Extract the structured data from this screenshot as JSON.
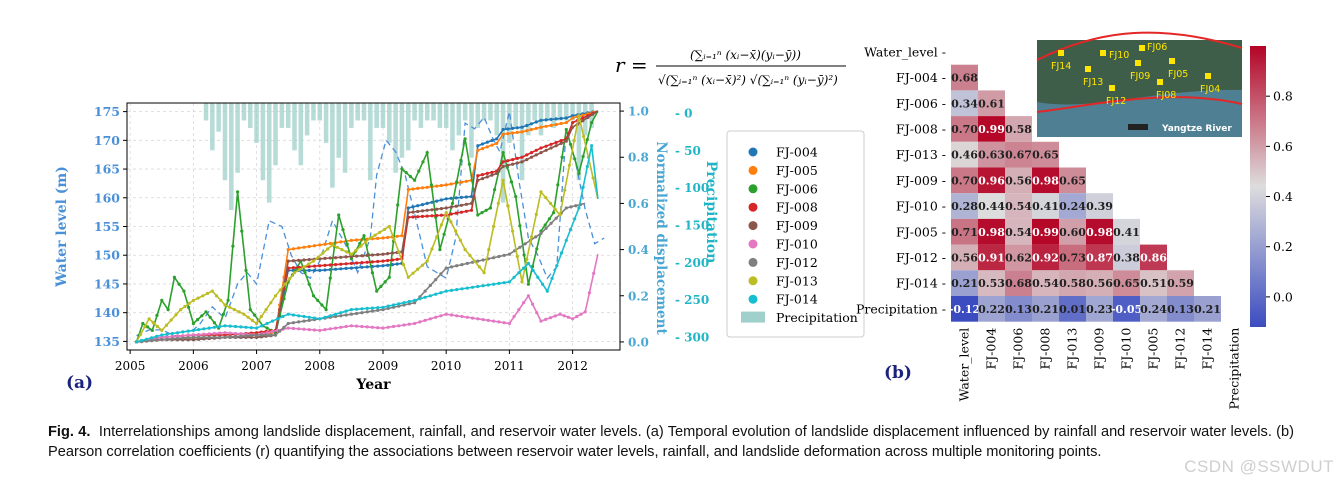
{
  "figure": {
    "panel_a_label": "(a)",
    "panel_b_label": "(b)",
    "formula": {
      "lhs": "r =",
      "numerator": "(∑ᵢ₌₁ⁿ (xᵢ−x̄)(yᵢ−ȳ))",
      "denominator": "√(∑ᵢ₌₁ⁿ (xᵢ−x̄)²) √(∑ᵢ₌₁ⁿ (yᵢ−ȳ)²)"
    },
    "map_inset": {
      "labels": [
        "FJ06",
        "FJ10",
        "FJ14",
        "FJ13",
        "FJ09",
        "FJ05",
        "FJ12",
        "FJ08",
        "FJ04"
      ],
      "river_label": "Yangtze River"
    }
  },
  "caption": {
    "label": "Fig. 4.",
    "text": "Interrelationships among landslide displacement, rainfall, and reservoir water levels. (a) Temporal evolution of landslide displacement influenced by rainfall and reservoir water levels. (b) Pearson correlation coefficients (r) quantifying the associations between reservoir water levels, rainfall, and landslide deformation across multiple monitoring points."
  },
  "watermark": "CSDN @SSWDUT",
  "colors": {
    "water": "#4a90d9",
    "precip": "#9fd0cb",
    "norm": "#4aa6d2",
    "precipAxis": "#1fb5c5",
    "FJ-004": "#1f77b4",
    "FJ-005": "#ff7f0e",
    "FJ-006": "#2ca02c",
    "FJ-008": "#d62728",
    "FJ-009": "#8c564b",
    "FJ-010": "#e377c2",
    "FJ-012": "#7f7f7f",
    "FJ-013": "#bcbd22",
    "FJ-014": "#17becf"
  },
  "chart_data": [
    {
      "type": "line",
      "title": "",
      "xlabel": "Year",
      "ylabel_left": "Water level (m)",
      "ylabel_right1": "Normalized displacement",
      "ylabel_right2": "Precipitation",
      "x_ticks": [
        "2005",
        "2006",
        "2007",
        "2008",
        "2009",
        "2010",
        "2011",
        "2012"
      ],
      "xlim": [
        2004.95,
        2012.75
      ],
      "y_left_ticks": [
        "135",
        "140",
        "145",
        "150",
        "155",
        "160",
        "165",
        "170",
        "175"
      ],
      "ylim_left": [
        133.5,
        176.5
      ],
      "y_right1_ticks": [
        "0.0",
        "0.2",
        "0.4",
        "0.6",
        "0.8",
        "1.0"
      ],
      "ylim_right1": [
        -0.035,
        1.035
      ],
      "y_right2_ticks": [
        "0",
        "50",
        "100",
        "150",
        "200",
        "250",
        "300"
      ],
      "ylim_right2_inverted": [
        0,
        300
      ],
      "legend": [
        "FJ-004",
        "FJ-005",
        "FJ-006",
        "FJ-008",
        "FJ-009",
        "FJ-010",
        "FJ-012",
        "FJ-013",
        "FJ-014",
        "Precipitation"
      ],
      "water_level": {
        "x": [
          2005.1,
          2005.3,
          2005.5,
          2005.7,
          2005.9,
          2006.1,
          2006.3,
          2006.5,
          2006.7,
          2006.85,
          2007.0,
          2007.2,
          2007.4,
          2007.55,
          2007.7,
          2007.85,
          2008.0,
          2008.2,
          2008.4,
          2008.6,
          2008.8,
          2008.9,
          2009.05,
          2009.2,
          2009.35,
          2009.55,
          2009.7,
          2009.85,
          2010.0,
          2010.15,
          2010.3,
          2010.45,
          2010.6,
          2010.75,
          2010.85,
          2011.0,
          2011.15,
          2011.3,
          2011.45,
          2011.6,
          2011.75,
          2011.9,
          2012.05,
          2012.2,
          2012.35,
          2012.5
        ],
        "y": [
          136,
          137,
          137,
          136,
          136,
          138,
          141,
          139,
          145,
          147,
          145,
          156,
          155,
          150,
          147,
          146,
          149,
          156,
          152,
          147,
          153,
          164,
          170,
          168,
          164,
          155,
          148,
          147,
          146,
          153,
          173,
          172,
          174,
          170,
          168,
          175,
          163,
          153,
          150,
          146,
          148,
          172,
          166,
          158,
          152,
          153
        ]
      },
      "precipitation": {
        "x": [
          2005.1,
          2005.2,
          2005.3,
          2005.4,
          2005.5,
          2005.6,
          2005.7,
          2005.8,
          2005.9,
          2006.0,
          2006.1,
          2006.2,
          2006.3,
          2006.4,
          2006.5,
          2006.6,
          2006.7,
          2006.8,
          2006.9,
          2007.0,
          2007.1,
          2007.2,
          2007.3,
          2007.4,
          2007.5,
          2007.6,
          2007.7,
          2007.8,
          2007.9,
          2008.0,
          2008.1,
          2008.2,
          2008.3,
          2008.4,
          2008.5,
          2008.6,
          2008.7,
          2008.8,
          2008.9,
          2009.0,
          2009.1,
          2009.2,
          2009.3,
          2009.4,
          2009.5,
          2009.6,
          2009.7,
          2009.8,
          2009.9,
          2010.0,
          2010.1,
          2010.2,
          2010.3,
          2010.4,
          2010.5,
          2010.6,
          2010.7,
          2010.8,
          2010.9,
          2011.0,
          2011.1,
          2011.2,
          2011.3,
          2011.4,
          2011.5,
          2011.6,
          2011.7,
          2011.8,
          2011.9,
          2012.0,
          2012.1,
          2012.2,
          2012.3
        ],
        "values": [
          0,
          0,
          0,
          0,
          0,
          0,
          0,
          0,
          0,
          0,
          0,
          10,
          50,
          25,
          90,
          130,
          80,
          10,
          20,
          40,
          90,
          120,
          70,
          20,
          20,
          50,
          70,
          30,
          10,
          10,
          40,
          100,
          60,
          80,
          20,
          10,
          10,
          90,
          20,
          20,
          40,
          80,
          60,
          50,
          10,
          20,
          10,
          10,
          20,
          20,
          50,
          30,
          10,
          60,
          20,
          10,
          10,
          30,
          120,
          40,
          20,
          90,
          30,
          10,
          30,
          10,
          20,
          10,
          10,
          10,
          90,
          30,
          20
        ]
      },
      "series": [
        {
          "name": "FJ-004",
          "x": [
            2005.1,
            2005.5,
            2006.0,
            2006.5,
            2007.0,
            2007.3,
            2007.5,
            2008.0,
            2008.5,
            2009.0,
            2009.3,
            2009.4,
            2010.0,
            2010.4,
            2010.5,
            2010.8,
            2010.9,
            2011.2,
            2011.5,
            2011.9,
            2012.0,
            2012.4
          ],
          "y": [
            0.0,
            0.01,
            0.01,
            0.02,
            0.02,
            0.03,
            0.31,
            0.31,
            0.32,
            0.33,
            0.34,
            0.58,
            0.62,
            0.63,
            0.85,
            0.88,
            0.92,
            0.93,
            0.96,
            0.97,
            0.98,
            1.0
          ]
        },
        {
          "name": "FJ-005",
          "x": [
            2005.1,
            2005.5,
            2006.0,
            2006.5,
            2007.0,
            2007.3,
            2007.5,
            2008.0,
            2008.5,
            2009.0,
            2009.3,
            2009.4,
            2010.0,
            2010.4,
            2010.5,
            2010.8,
            2010.9,
            2011.2,
            2011.5,
            2011.9,
            2012.0,
            2012.4
          ],
          "y": [
            0.0,
            0.01,
            0.02,
            0.02,
            0.03,
            0.04,
            0.4,
            0.42,
            0.44,
            0.45,
            0.46,
            0.66,
            0.68,
            0.7,
            0.83,
            0.86,
            0.9,
            0.91,
            0.93,
            0.95,
            0.97,
            1.0
          ]
        },
        {
          "name": "FJ-006",
          "x": [
            2005.1,
            2005.2,
            2005.35,
            2005.5,
            2005.6,
            2005.7,
            2005.85,
            2006.0,
            2006.2,
            2006.4,
            2006.55,
            2006.7,
            2006.9,
            2007.1,
            2007.3,
            2007.5,
            2007.7,
            2007.9,
            2008.1,
            2008.3,
            2008.5,
            2008.7,
            2008.9,
            2009.1,
            2009.3,
            2009.5,
            2009.7,
            2009.9,
            2010.1,
            2010.3,
            2010.5,
            2010.7,
            2010.9,
            2011.1,
            2011.3,
            2011.5,
            2011.7,
            2011.9,
            2012.1,
            2012.3,
            2012.4
          ],
          "y": [
            0.0,
            0.08,
            0.05,
            0.18,
            0.14,
            0.28,
            0.22,
            0.08,
            0.13,
            0.06,
            0.18,
            0.65,
            0.14,
            0.07,
            0.04,
            0.26,
            0.35,
            0.2,
            0.14,
            0.55,
            0.36,
            0.46,
            0.22,
            0.28,
            0.75,
            0.7,
            0.82,
            0.4,
            0.6,
            0.88,
            0.55,
            0.58,
            0.82,
            0.63,
            0.25,
            0.48,
            0.56,
            0.92,
            0.73,
            0.95,
            1.0
          ]
        },
        {
          "name": "FJ-008",
          "x": [
            2005.1,
            2005.5,
            2006.0,
            2006.5,
            2007.0,
            2007.3,
            2007.5,
            2008.0,
            2008.5,
            2009.0,
            2009.3,
            2009.4,
            2010.0,
            2010.4,
            2010.5,
            2010.8,
            2010.9,
            2011.2,
            2011.5,
            2011.9,
            2012.0,
            2012.4
          ],
          "y": [
            0.0,
            0.02,
            0.03,
            0.03,
            0.04,
            0.05,
            0.32,
            0.33,
            0.34,
            0.35,
            0.36,
            0.54,
            0.55,
            0.57,
            0.72,
            0.74,
            0.78,
            0.8,
            0.84,
            0.88,
            0.95,
            1.0
          ]
        },
        {
          "name": "FJ-009",
          "x": [
            2005.1,
            2005.5,
            2006.0,
            2006.5,
            2007.0,
            2007.3,
            2007.5,
            2008.0,
            2008.5,
            2009.0,
            2009.3,
            2009.4,
            2010.0,
            2010.4,
            2010.5,
            2010.8,
            2010.9,
            2011.2,
            2011.5,
            2011.9,
            2012.0,
            2012.4
          ],
          "y": [
            0.0,
            0.01,
            0.01,
            0.02,
            0.02,
            0.03,
            0.35,
            0.36,
            0.37,
            0.38,
            0.39,
            0.56,
            0.58,
            0.6,
            0.7,
            0.73,
            0.76,
            0.78,
            0.82,
            0.87,
            0.93,
            1.0
          ]
        },
        {
          "name": "FJ-010",
          "x": [
            2005.1,
            2005.5,
            2006.0,
            2006.5,
            2007.0,
            2007.5,
            2008.0,
            2008.5,
            2009.0,
            2009.5,
            2010.0,
            2010.5,
            2011.0,
            2011.3,
            2011.5,
            2011.8,
            2012.0,
            2012.2,
            2012.4
          ],
          "y": [
            0.0,
            0.02,
            0.03,
            0.04,
            0.03,
            0.06,
            0.05,
            0.07,
            0.06,
            0.08,
            0.12,
            0.1,
            0.08,
            0.2,
            0.09,
            0.12,
            0.1,
            0.13,
            0.38
          ]
        },
        {
          "name": "FJ-012",
          "x": [
            2005.1,
            2005.5,
            2006.0,
            2006.5,
            2007.0,
            2007.3,
            2007.5,
            2008.0,
            2008.5,
            2009.0,
            2009.5,
            2010.0,
            2010.5,
            2011.0,
            2011.5,
            2011.9,
            2012.2
          ],
          "y": [
            0.0,
            0.01,
            0.02,
            0.02,
            0.03,
            0.03,
            0.08,
            0.1,
            0.12,
            0.14,
            0.17,
            0.32,
            0.35,
            0.38,
            0.47,
            0.58,
            0.6
          ]
        },
        {
          "name": "FJ-013",
          "x": [
            2005.1,
            2005.3,
            2005.5,
            2005.8,
            2006.0,
            2006.3,
            2006.5,
            2006.8,
            2007.0,
            2007.3,
            2007.6,
            2007.9,
            2008.2,
            2008.5,
            2008.8,
            2009.1,
            2009.4,
            2009.7,
            2010.0,
            2010.3,
            2010.6,
            2010.9,
            2011.2,
            2011.5,
            2011.8,
            2012.1,
            2012.4
          ],
          "y": [
            0.0,
            0.1,
            0.05,
            0.14,
            0.18,
            0.22,
            0.16,
            0.12,
            0.08,
            0.2,
            0.3,
            0.35,
            0.42,
            0.38,
            0.45,
            0.5,
            0.28,
            0.35,
            0.56,
            0.4,
            0.3,
            0.7,
            0.26,
            0.65,
            0.55,
            0.98,
            0.62
          ]
        },
        {
          "name": "FJ-014",
          "x": [
            2005.1,
            2005.5,
            2006.0,
            2006.5,
            2007.0,
            2007.5,
            2008.0,
            2008.5,
            2009.0,
            2009.5,
            2010.0,
            2010.5,
            2011.0,
            2011.3,
            2011.6,
            2011.9,
            2012.1,
            2012.3,
            2012.4
          ],
          "y": [
            0.0,
            0.03,
            0.05,
            0.07,
            0.06,
            0.12,
            0.1,
            0.14,
            0.15,
            0.18,
            0.22,
            0.24,
            0.26,
            0.34,
            0.22,
            0.44,
            0.58,
            0.85,
            0.62
          ]
        }
      ]
    },
    {
      "type": "heatmap",
      "title": "",
      "row_labels": [
        "Water_level",
        "FJ-004",
        "FJ-006",
        "FJ-008",
        "FJ-013",
        "FJ-009",
        "FJ-010",
        "FJ-005",
        "FJ-012",
        "FJ-014",
        "Precipitation"
      ],
      "col_labels": [
        "Water_level",
        "FJ-004",
        "FJ-006",
        "FJ-008",
        "FJ-013",
        "FJ-009",
        "FJ-010",
        "FJ-005",
        "FJ-012",
        "FJ-014",
        "Precipitation"
      ],
      "values": [
        [],
        [
          "0.68"
        ],
        [
          "0.34",
          "0.61"
        ],
        [
          "0.70",
          "0.99",
          "0.58"
        ],
        [
          "0.46",
          "0.63",
          "0.67",
          "0.65"
        ],
        [
          "0.70",
          "0.96",
          "0.56",
          "0.98",
          "0.65"
        ],
        [
          "0.28",
          "0.44",
          "0.54",
          "0.41",
          "0.24",
          "0.39"
        ],
        [
          "0.71",
          "0.98",
          "0.54",
          "0.99",
          "0.60",
          "0.98",
          "0.41"
        ],
        [
          "0.56",
          "0.91",
          "0.62",
          "0.92",
          "0.73",
          "0.87",
          "0.38",
          "0.86"
        ],
        [
          "0.21",
          "0.53",
          "0.68",
          "0.54",
          "0.58",
          "0.56",
          "0.65",
          "0.51",
          "0.59"
        ],
        [
          "-0.12",
          "0.22",
          "0.13",
          "0.21",
          "0.01",
          "0.23",
          "-0.05",
          "0.24",
          "0.13",
          "0.21"
        ]
      ],
      "colorbar_ticks": [
        "0.0",
        "0.2",
        "0.4",
        "0.6",
        "0.8"
      ],
      "colorbar_range": [
        -0.12,
        1.0
      ]
    }
  ]
}
